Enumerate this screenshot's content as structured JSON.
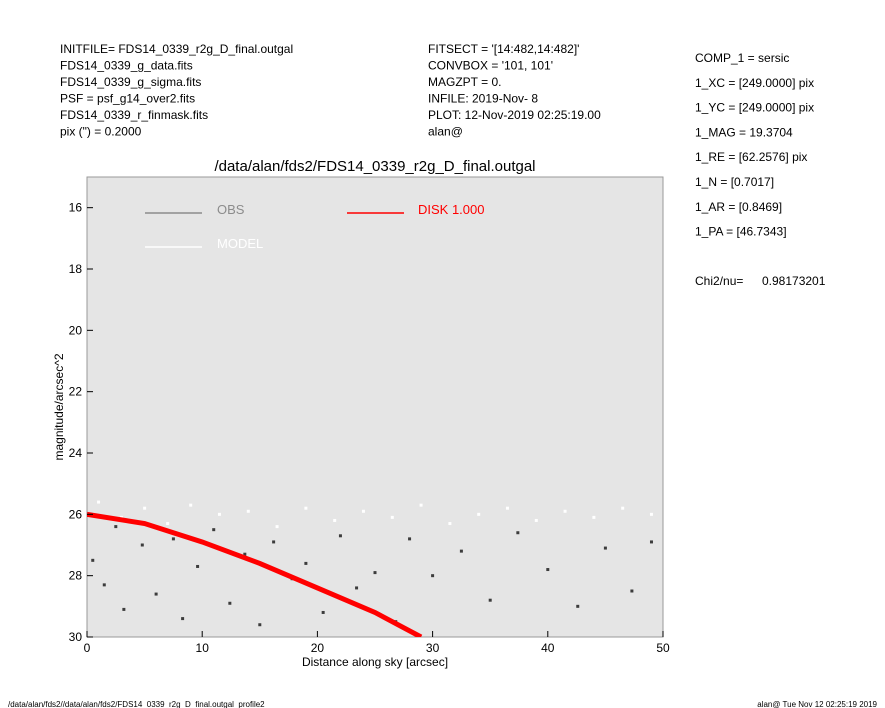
{
  "header": {
    "left": [
      "INITFILE= FDS14_0339_r2g_D_final.outgal",
      "FDS14_0339_g_data.fits",
      "FDS14_0339_g_sigma.fits",
      "PSF    = psf_g14_over2.fits",
      "FDS14_0339_r_finmask.fits",
      "pix (\") =  0.2000"
    ],
    "middle": [
      "FITSECT = '[14:482,14:482]'",
      "CONVBOX = '101, 101'",
      "MAGZPT  =              0.",
      "INFILE: 2019-Nov- 8",
      "PLOT: 12-Nov-2019 02:25:19.00",
      "alan@"
    ],
    "right": [
      "COMP_1  = sersic",
      "1_XC    = [249.0000] pix",
      "1_YC    = [249.0000] pix",
      "1_MAG   = 19.3704",
      "1_RE    = [62.2576] pix",
      "1_N     = [0.7017]",
      "1_AR    = [0.8469]",
      "1_PA    = [46.7343]"
    ],
    "chi_label": "Chi2/nu=",
    "chi_value": "0.98173201"
  },
  "chart_data": {
    "type": "scatter",
    "title": "/data/alan/fds2/FDS14_0339_r2g_D_final.outgal",
    "xlabel": "Distance along sky [arcsec]",
    "ylabel": "magnitude/arcsec^2",
    "xlim": [
      0,
      50
    ],
    "ylim": [
      30,
      15
    ],
    "xticks": [
      0,
      10,
      20,
      30,
      40,
      50
    ],
    "yticks": [
      16,
      18,
      20,
      22,
      24,
      26,
      28,
      30
    ],
    "series": [
      {
        "name": "OBS",
        "color": "#8c8c8c",
        "marker_color": "#3c3c3c",
        "x": [
          0.5,
          1.5,
          2.5,
          3.2,
          4.8,
          6,
          7.5,
          8.3,
          9.6,
          11,
          12.4,
          13.7,
          15,
          16.2,
          17.8,
          19,
          20.5,
          22,
          23.4,
          25,
          26.8,
          28,
          30,
          32.5,
          35,
          37.4,
          40,
          42.6,
          45,
          47.3,
          49
        ],
        "values": [
          27.5,
          28.3,
          26.4,
          29.1,
          27.0,
          28.6,
          26.8,
          29.4,
          27.7,
          26.5,
          28.9,
          27.3,
          29.6,
          26.9,
          28.1,
          27.6,
          29.2,
          26.7,
          28.4,
          27.9,
          29.5,
          26.8,
          28.0,
          27.2,
          28.8,
          26.6,
          27.8,
          29.0,
          27.1,
          28.5,
          26.9
        ]
      },
      {
        "name": "MODEL",
        "color": "#ffffff",
        "marker_color": "#ffffff",
        "x": [
          1,
          3,
          5,
          7,
          9,
          11.5,
          14,
          16.5,
          19,
          21.5,
          24,
          26.5,
          29,
          31.5,
          34,
          36.5,
          39,
          41.5,
          44,
          46.5,
          49
        ],
        "values": [
          25.6,
          26.1,
          25.8,
          26.3,
          25.7,
          26.0,
          25.9,
          26.4,
          25.8,
          26.2,
          25.9,
          26.1,
          25.7,
          26.3,
          26.0,
          25.8,
          26.2,
          25.9,
          26.1,
          25.8,
          26.0
        ]
      },
      {
        "name": "DISK  1.000",
        "color": "#ff0000",
        "line": true,
        "x": [
          0,
          5,
          10,
          15,
          20,
          25,
          29
        ],
        "values": [
          26.0,
          26.3,
          26.9,
          27.6,
          28.4,
          29.2,
          30.0
        ]
      }
    ]
  },
  "footer": {
    "left": "/data/alan/fds2//data/alan/fds2/FDS14_0339_r2g_D_final.outgal_profile2",
    "right": "alan@  Tue Nov 12 02:25:19 2019"
  }
}
